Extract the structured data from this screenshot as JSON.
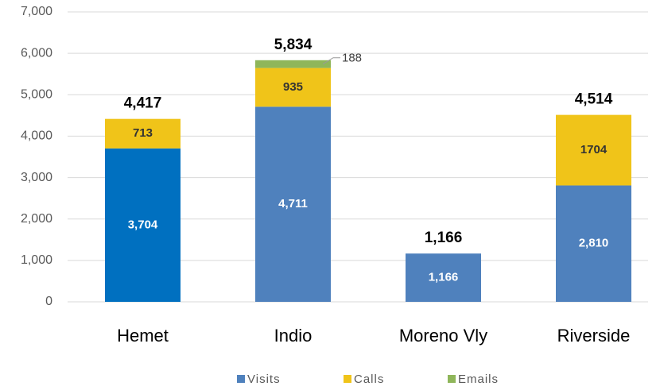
{
  "chart_data": {
    "type": "stacked_bar",
    "categories": [
      "Hemet",
      "Indio",
      "Moreno Vly",
      "Riverside"
    ],
    "series": [
      {
        "name": "Visits",
        "color": "#4f81bd",
        "point_colors": [
          "#0070c0",
          "#4f81bd",
          "#4f81bd",
          "#4f81bd"
        ],
        "values": [
          3704,
          4711,
          1166,
          2810
        ],
        "value_labels": [
          "3,704",
          "4,711",
          "1,166",
          "2,810"
        ]
      },
      {
        "name": "Calls",
        "color": "#f0c419",
        "values": [
          713,
          935,
          null,
          1704
        ]
      },
      {
        "name": "Emails",
        "color": "#8fb65a",
        "values": [
          null,
          188,
          null,
          null
        ]
      }
    ],
    "totals": [
      4417,
      5834,
      1166,
      4514
    ],
    "total_labels": [
      "4,417",
      "5,834",
      "1,166",
      "4,514"
    ],
    "ylim": [
      0,
      7000
    ],
    "yticks": [
      0,
      {
        "value": 1000,
        "label": "1,000"
      },
      {
        "value": 2000,
        "label": "2,000"
      },
      {
        "value": 3000,
        "label": "3,000"
      },
      {
        "value": 4000,
        "label": "4,000"
      },
      {
        "value": 5000,
        "label": "5,000"
      },
      {
        "value": 6000,
        "label": "6,000"
      },
      {
        "value": 7000,
        "label": "7,000"
      }
    ],
    "grid": true,
    "legend": "bottom"
  }
}
